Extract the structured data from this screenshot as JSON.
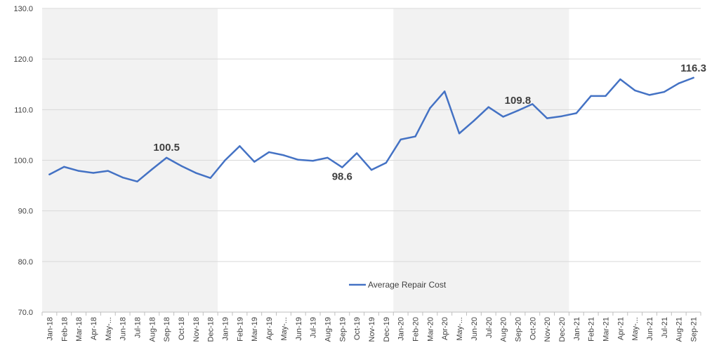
{
  "chart_data": {
    "type": "line",
    "categories": [
      "Jan-18",
      "Feb-18",
      "Mar-18",
      "Apr-18",
      "May-...",
      "Jun-18",
      "Jul-18",
      "Aug-18",
      "Sep-18",
      "Oct-18",
      "Nov-18",
      "Dec-18",
      "Jan-19",
      "Feb-19",
      "Mar-19",
      "Apr-19",
      "May-...",
      "Jun-19",
      "Jul-19",
      "Aug-19",
      "Sep-19",
      "Oct-19",
      "Nov-19",
      "Dec-19",
      "Jan-20",
      "Feb-20",
      "Mar-20",
      "Apr-20",
      "May-...",
      "Jun-20",
      "Jul-20",
      "Aug-20",
      "Sep-20",
      "Oct-20",
      "Nov-20",
      "Dec-20",
      "Jan-21",
      "Feb-21",
      "Mar-21",
      "Apr-21",
      "May-...",
      "Jun-21",
      "Jul-21",
      "Aug-21",
      "Sep-21"
    ],
    "series": [
      {
        "name": "Average Repair Cost",
        "color": "#4472C4",
        "values": [
          97.2,
          98.7,
          97.9,
          97.5,
          97.9,
          96.6,
          95.8,
          98.2,
          100.5,
          98.9,
          97.5,
          96.5,
          100.0,
          102.8,
          99.7,
          101.6,
          101.0,
          100.1,
          99.9,
          100.5,
          98.6,
          101.4,
          98.1,
          99.5,
          104.1,
          104.7,
          110.3,
          113.6,
          105.3,
          107.8,
          110.5,
          108.6,
          109.8,
          111.1,
          108.3,
          108.7,
          109.3,
          112.7,
          112.7,
          116.0,
          113.8,
          112.9,
          113.5,
          115.2,
          116.3
        ]
      }
    ],
    "data_labels": [
      {
        "index": 8,
        "text": "100.5"
      },
      {
        "index": 20,
        "text": "98.6"
      },
      {
        "index": 32,
        "text": "109.8"
      },
      {
        "index": 44,
        "text": "116.3"
      }
    ],
    "y_ticks": [
      "70.0",
      "80.0",
      "90.0",
      "100.0",
      "110.0",
      "120.0",
      "130.0"
    ],
    "ylim": [
      70,
      130
    ],
    "title": "",
    "xlabel": "",
    "ylabel": "",
    "grid": true,
    "legend": "inside-bottom-center",
    "shaded_bands": [
      {
        "from": "Jan-18",
        "to": "Dec-18",
        "color": "#F2F2F2"
      },
      {
        "from": "Jan-20",
        "to": "Dec-20",
        "color": "#F2F2F2"
      }
    ]
  }
}
